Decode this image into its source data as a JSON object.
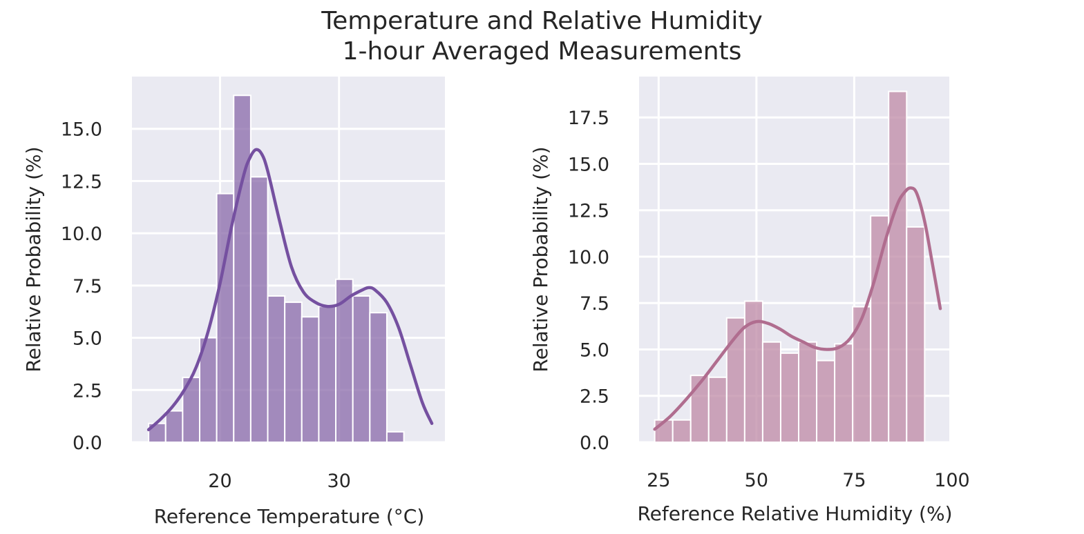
{
  "figure": {
    "title": "Temperature and Relative Humidity",
    "subtitle": "1-hour Averaged Measurements"
  },
  "chart_data": [
    {
      "type": "bar",
      "xlabel": "Reference Temperature (°C)",
      "ylabel": "Relative Probability (%)",
      "xlim": [
        12.6,
        38.9
      ],
      "ylim": [
        0,
        17.5
      ],
      "xticks": [
        20,
        30
      ],
      "yticks": [
        0.0,
        2.5,
        5.0,
        7.5,
        10.0,
        12.5,
        15.0
      ],
      "ytick_labels": [
        "0.0",
        "2.5",
        "5.0",
        "7.5",
        "10.0",
        "12.5",
        "15.0"
      ],
      "bin_start": 14.0,
      "bin_width": 1.43,
      "values": [
        0.9,
        1.5,
        3.1,
        5.0,
        11.9,
        16.6,
        12.7,
        7.0,
        6.7,
        6.0,
        6.5,
        7.8,
        7.0,
        6.2,
        0.5
      ],
      "grid": true,
      "bar_color": "#8a6aaa",
      "kde_color": "#7550a0",
      "kde": {
        "x": [
          14.0,
          15.0,
          16.0,
          17.0,
          18.0,
          19.0,
          20.0,
          21.0,
          22.0,
          22.5,
          23.0,
          23.5,
          24.0,
          25.0,
          26.0,
          27.0,
          28.0,
          29.0,
          30.0,
          31.0,
          32.0,
          32.5,
          33.0,
          34.0,
          35.0,
          36.0,
          37.0,
          37.8
        ],
        "y": [
          0.6,
          1.1,
          1.7,
          2.5,
          3.6,
          5.3,
          7.6,
          10.4,
          12.8,
          13.6,
          14.0,
          13.8,
          13.0,
          10.6,
          8.4,
          7.2,
          6.7,
          6.5,
          6.6,
          7.0,
          7.3,
          7.4,
          7.3,
          6.7,
          5.5,
          3.7,
          1.9,
          0.9
        ]
      }
    },
    {
      "type": "bar",
      "xlabel": "Reference Relative Humidity (%)",
      "ylabel": "Relative Probability (%)",
      "xlim": [
        20.0,
        99.3
      ],
      "ylim": [
        0,
        19.7
      ],
      "xticks": [
        25,
        50,
        75,
        100
      ],
      "yticks": [
        0.0,
        2.5,
        5.0,
        7.5,
        10.0,
        12.5,
        15.0,
        17.5
      ],
      "ytick_labels": [
        "0.0",
        "2.5",
        "5.0",
        "7.5",
        "10.0",
        "12.5",
        "15.0",
        "17.5"
      ],
      "bin_start": 24.0,
      "bin_width": 4.6,
      "values": [
        1.2,
        1.2,
        3.6,
        3.5,
        6.7,
        7.6,
        5.4,
        4.8,
        5.4,
        4.4,
        5.3,
        7.3,
        12.2,
        18.9,
        11.6
      ],
      "grid": true,
      "bar_color": "#bf8aa6",
      "kde_color": "#b06d8f",
      "kde": {
        "x": [
          24.0,
          28.0,
          32.0,
          36.0,
          40.0,
          44.0,
          47.0,
          50.0,
          53.0,
          56.0,
          59.0,
          62.0,
          65.0,
          68.0,
          71.0,
          74.0,
          77.0,
          80.0,
          83.0,
          86.0,
          88.0,
          89.5,
          91.0,
          93.0,
          95.0,
          97.0
        ],
        "y": [
          0.7,
          1.4,
          2.3,
          3.3,
          4.4,
          5.5,
          6.2,
          6.5,
          6.4,
          6.1,
          5.7,
          5.4,
          5.1,
          5.0,
          5.1,
          5.6,
          6.7,
          8.6,
          10.9,
          12.8,
          13.5,
          13.7,
          13.4,
          11.9,
          9.6,
          7.2
        ]
      }
    }
  ]
}
